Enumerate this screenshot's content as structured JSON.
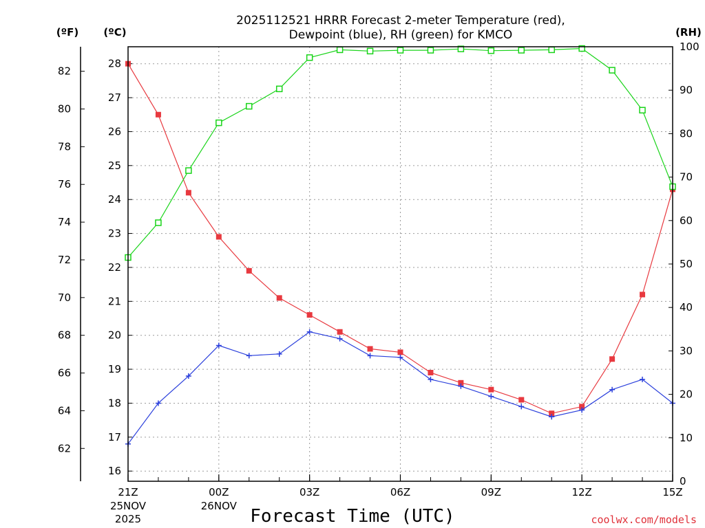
{
  "chart_data": {
    "type": "line",
    "title_line1": "2025112521 HRRR Forecast 2-meter Temperature (red),",
    "title_line2": "Dewpoint (blue), RH (green) for KMCO",
    "xlabel": "Forecast Time (UTC)",
    "credit": "coolwx.com/models",
    "units": {
      "fahrenheit": "(ºF)",
      "celsius": "(ºC)",
      "rh": "(RH)"
    },
    "x": [
      "21Z",
      "22Z",
      "23Z",
      "00Z",
      "01Z",
      "02Z",
      "03Z",
      "04Z",
      "05Z",
      "06Z",
      "07Z",
      "08Z",
      "09Z",
      "10Z",
      "11Z",
      "12Z",
      "13Z",
      "14Z",
      "15Z"
    ],
    "x_ticks": [
      {
        "index": 0,
        "label": "21Z",
        "sub1": "25NOV",
        "sub2": "2025"
      },
      {
        "index": 3,
        "label": "00Z",
        "sub1": "26NOV",
        "sub2": ""
      },
      {
        "index": 6,
        "label": "03Z",
        "sub1": "",
        "sub2": ""
      },
      {
        "index": 9,
        "label": "06Z",
        "sub1": "",
        "sub2": ""
      },
      {
        "index": 12,
        "label": "09Z",
        "sub1": "",
        "sub2": ""
      },
      {
        "index": 15,
        "label": "12Z",
        "sub1": "",
        "sub2": ""
      },
      {
        "index": 18,
        "label": "15Z",
        "sub1": "",
        "sub2": ""
      }
    ],
    "celsius_axis": {
      "ylim": [
        15.7,
        28.5
      ],
      "ticks": [
        16,
        17,
        18,
        19,
        20,
        21,
        22,
        23,
        24,
        25,
        26,
        27,
        28
      ]
    },
    "fahrenheit_axis": {
      "ticks": [
        62,
        64,
        66,
        68,
        70,
        72,
        74,
        76,
        78,
        80,
        82
      ]
    },
    "rh_axis": {
      "ylim": [
        0,
        100
      ],
      "ticks": [
        0,
        10,
        20,
        30,
        40,
        50,
        60,
        70,
        80,
        90,
        100
      ]
    },
    "series": [
      {
        "name": "2-meter Temperature",
        "axis": "celsius",
        "color": "#e8393f",
        "marker": "filled-square",
        "values": [
          28.0,
          26.5,
          24.2,
          22.9,
          21.9,
          21.1,
          20.6,
          20.1,
          19.6,
          19.5,
          18.9,
          18.6,
          18.4,
          18.1,
          17.7,
          17.9,
          19.3,
          21.2,
          24.3
        ]
      },
      {
        "name": "Dewpoint",
        "axis": "celsius",
        "color": "#2a3fdc",
        "marker": "plus",
        "values": [
          16.8,
          18.0,
          18.8,
          19.7,
          19.4,
          19.45,
          20.1,
          19.9,
          19.4,
          19.35,
          18.7,
          18.5,
          18.2,
          17.9,
          17.6,
          17.8,
          18.4,
          18.7,
          18.0
        ]
      },
      {
        "name": "RH",
        "axis": "rh",
        "color": "#19d419",
        "marker": "open-square",
        "values": [
          51.5,
          59.5,
          71.5,
          82.5,
          86.3,
          90.3,
          97.5,
          99.3,
          99.0,
          99.2,
          99.2,
          99.5,
          99.1,
          99.2,
          99.3,
          99.6,
          94.6,
          85.4,
          67.8
        ]
      }
    ]
  }
}
